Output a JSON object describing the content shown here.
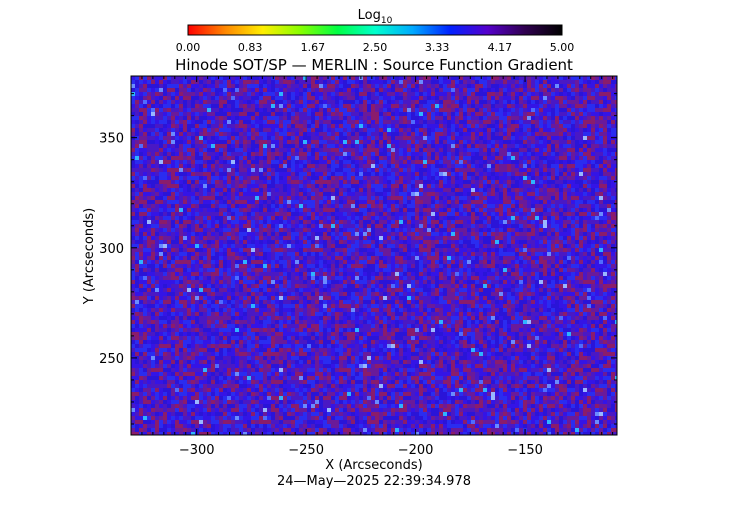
{
  "chart_data": {
    "type": "heatmap",
    "title": "Hinode SOT/SP — MERLIN : Source Function Gradient",
    "xlabel": "X (Arcseconds)",
    "ylabel": "Y (Arcseconds)",
    "xlim": [
      -330,
      -108
    ],
    "ylim": [
      215,
      378
    ],
    "x_ticks": [
      -300,
      -250,
      -200,
      -150
    ],
    "x_tick_labels": [
      "−300",
      "−250",
      "−200",
      "−150"
    ],
    "y_ticks": [
      250,
      300,
      350
    ],
    "y_tick_labels": [
      "250",
      "300",
      "350"
    ],
    "grid": false,
    "timestamp": "24—May—2025 22:39:34.978",
    "colorbar": {
      "label_base": "Log",
      "label_subscript": "10",
      "range": [
        0,
        5
      ],
      "ticks": [
        0,
        0.83,
        1.67,
        2.5,
        3.33,
        4.17,
        5
      ],
      "tick_labels": [
        "0.00",
        "0.83",
        "1.67",
        "2.50",
        "3.33",
        "4.17",
        "5.00"
      ],
      "colormap": [
        "#ff0000",
        "#ff8800",
        "#ffee00",
        "#88ff00",
        "#00ff44",
        "#00ffcc",
        "#00aaff",
        "#0022ff",
        "#5500cc",
        "#300050",
        "#000000"
      ],
      "placement": "top"
    },
    "field": {
      "description_value_log10_dominant": 4.4,
      "dominant_colors": [
        "#2a14d8",
        "#3414e6",
        "#4a18c4",
        "#6a1a9a",
        "#8a1c6c",
        "#2a2cf0"
      ],
      "speckle_colors": [
        "#4f6cff",
        "#6a8cff",
        "#2fb4ff",
        "#9ab8ff"
      ],
      "background_color": "#3414d6"
    }
  }
}
